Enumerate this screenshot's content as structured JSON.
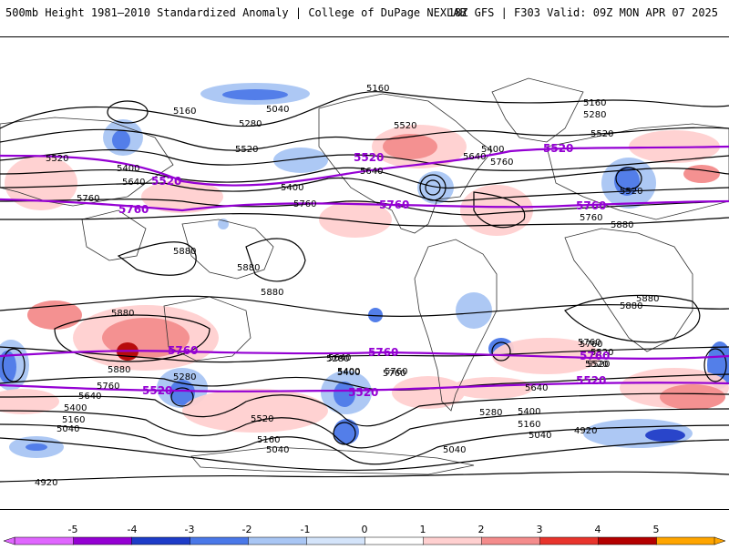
{
  "header": {
    "left_title": "500mb Height 1981–2010 Standardized Anomaly | College of DuPage NEXLAB",
    "right_title": "18Z GFS | F303 Valid: 09Z MON APR 07 2025"
  },
  "contour_labels": [
    "5160",
    "5040",
    "5160",
    "5280",
    "5520",
    "5160",
    "5280",
    "5520",
    "5400",
    "5640",
    "5760",
    "5520",
    "5400",
    "5520",
    "5640",
    "5760",
    "5400",
    "5520",
    "5760",
    "5880",
    "5880",
    "5880",
    "5880",
    "5880",
    "5880",
    "5760",
    "5760",
    "5640",
    "5400",
    "5280",
    "5520",
    "5400",
    "5640",
    "5760",
    "5520",
    "5400",
    "5280",
    "5160",
    "5040",
    "5160",
    "5040",
    "5040",
    "5280",
    "5400",
    "5640",
    "5760",
    "5760",
    "5520",
    "5160",
    "5040",
    "4920",
    "4920",
    "5520",
    "5640",
    "5760",
    "5880",
    "5880"
  ],
  "contour_highlight": {
    "label_5520": "5520",
    "label_5760": "5760",
    "color": "#9400d3"
  },
  "colorbar": {
    "ticks": [
      "-5",
      "-4",
      "-3",
      "-2",
      "-1",
      "0",
      "1",
      "2",
      "3",
      "4",
      "5"
    ],
    "colors": [
      "#e066ff",
      "#9400d3",
      "#1e3cc8",
      "#4a78e8",
      "#a9c6f4",
      "#d4e4fa",
      "#ffffff",
      "#ffd0d0",
      "#f48c8c",
      "#e8342c",
      "#b40000",
      "#ffa500"
    ]
  }
}
